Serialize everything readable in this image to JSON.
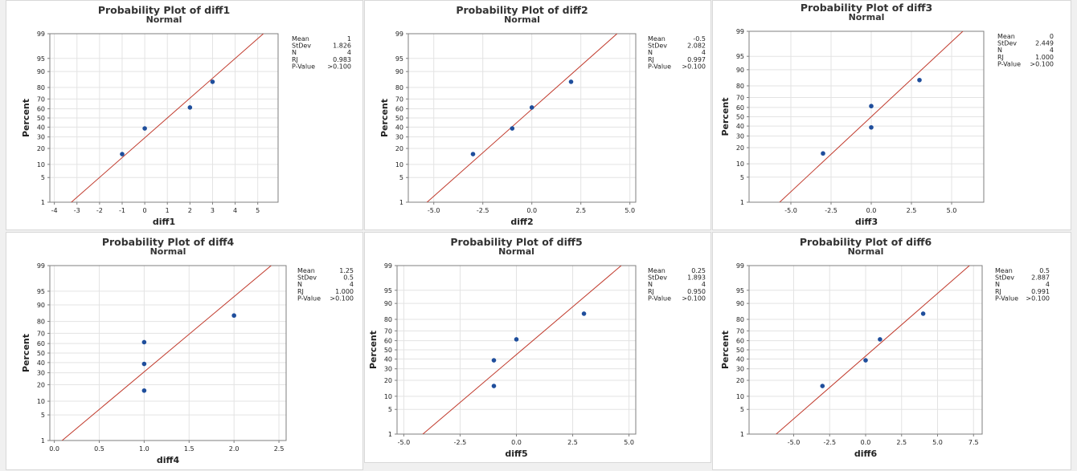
{
  "chart_data": [
    {
      "type": "scatter",
      "title": "Probability Plot of diff1",
      "subtitle": "Normal",
      "xlabel": "diff1",
      "ylabel": "Percent",
      "xlim": [
        -4.2,
        5.9
      ],
      "xticks": [
        -4,
        -3,
        -2,
        -1,
        0,
        1,
        2,
        3,
        4,
        5
      ],
      "xtick_labels": [
        "-4",
        "-3",
        "-2",
        "-1",
        "0",
        "1",
        "2",
        "3",
        "4",
        "5"
      ],
      "yticks": [
        1,
        5,
        10,
        20,
        30,
        40,
        50,
        60,
        70,
        80,
        90,
        95,
        99
      ],
      "ylim": [
        1,
        99
      ],
      "points": [
        {
          "x": -1,
          "y": 15.9
        },
        {
          "x": 0,
          "y": 38.6
        },
        {
          "x": 2,
          "y": 61.4
        },
        {
          "x": 3,
          "y": 84.1
        }
      ],
      "fit_line": {
        "mean": 1,
        "sd": 1.826
      },
      "stats": [
        {
          "label": "Mean",
          "value": "1"
        },
        {
          "label": "StDev",
          "value": "1.826"
        },
        {
          "label": "N",
          "value": "4"
        },
        {
          "label": "RJ",
          "value": "0.983"
        },
        {
          "label": "P-Value",
          "value": ">0.100"
        }
      ]
    },
    {
      "type": "scatter",
      "title": "Probability Plot of diff2",
      "subtitle": "Normal",
      "xlabel": "diff2",
      "ylabel": "Percent",
      "xlim": [
        -6.3,
        5.3
      ],
      "xticks": [
        -5,
        -2.5,
        0,
        2.5,
        5
      ],
      "xtick_labels": [
        "-5.0",
        "-2.5",
        "0.0",
        "2.5",
        "5.0"
      ],
      "yticks": [
        1,
        5,
        10,
        20,
        30,
        40,
        50,
        60,
        70,
        80,
        90,
        95,
        99
      ],
      "ylim": [
        1,
        99
      ],
      "points": [
        {
          "x": -3,
          "y": 15.9
        },
        {
          "x": -1,
          "y": 38.6
        },
        {
          "x": 0,
          "y": 61.4
        },
        {
          "x": 2,
          "y": 84.1
        }
      ],
      "fit_line": {
        "mean": -0.5,
        "sd": 2.082
      },
      "stats": [
        {
          "label": "Mean",
          "value": "-0.5"
        },
        {
          "label": "StDev",
          "value": "2.082"
        },
        {
          "label": "N",
          "value": "4"
        },
        {
          "label": "RJ",
          "value": "0.997"
        },
        {
          "label": "P-Value",
          "value": ">0.100"
        }
      ]
    },
    {
      "type": "scatter",
      "title": "Probability Plot of diff3",
      "subtitle": "Normal",
      "xlabel": "diff3",
      "ylabel": "Percent",
      "xlim": [
        -7.6,
        7
      ],
      "xticks": [
        -5,
        -2.5,
        0,
        2.5,
        5
      ],
      "xtick_labels": [
        "-5.0",
        "-2.5",
        "0.0",
        "2.5",
        "5.0"
      ],
      "yticks": [
        1,
        5,
        10,
        20,
        30,
        40,
        50,
        60,
        70,
        80,
        90,
        95,
        99
      ],
      "ylim": [
        1,
        99
      ],
      "points": [
        {
          "x": -3,
          "y": 15.9
        },
        {
          "x": 0,
          "y": 38.6
        },
        {
          "x": 0,
          "y": 61.4
        },
        {
          "x": 3,
          "y": 84.1
        }
      ],
      "fit_line": {
        "mean": 0,
        "sd": 2.449
      },
      "stats": [
        {
          "label": "Mean",
          "value": "0"
        },
        {
          "label": "StDev",
          "value": "2.449"
        },
        {
          "label": "N",
          "value": "4"
        },
        {
          "label": "RJ",
          "value": "1.000"
        },
        {
          "label": "P-Value",
          "value": ">0.100"
        }
      ]
    },
    {
      "type": "scatter",
      "title": "Probability Plot of diff4",
      "subtitle": "Normal",
      "xlabel": "diff4",
      "ylabel": "Percent",
      "xlim": [
        -0.05,
        2.58
      ],
      "xticks": [
        0,
        0.5,
        1,
        1.5,
        2,
        2.5
      ],
      "xtick_labels": [
        "0.0",
        "0.5",
        "1.0",
        "1.5",
        "2.0",
        "2.5"
      ],
      "yticks": [
        1,
        5,
        10,
        20,
        30,
        40,
        50,
        60,
        70,
        80,
        90,
        95,
        99
      ],
      "ylim": [
        1,
        99
      ],
      "points": [
        {
          "x": 1,
          "y": 15.9
        },
        {
          "x": 1,
          "y": 38.6
        },
        {
          "x": 1,
          "y": 61.4
        },
        {
          "x": 2,
          "y": 84.1
        }
      ],
      "fit_line": {
        "mean": 1.25,
        "sd": 0.5
      },
      "stats": [
        {
          "label": "Mean",
          "value": "1.25"
        },
        {
          "label": "StDev",
          "value": "0.5"
        },
        {
          "label": "N",
          "value": "4"
        },
        {
          "label": "RJ",
          "value": "1.000"
        },
        {
          "label": "P-Value",
          "value": ">0.100"
        }
      ]
    },
    {
      "type": "scatter",
      "title": "Probability Plot of diff5",
      "subtitle": "Normal",
      "xlabel": "diff5",
      "ylabel": "Percent",
      "xlim": [
        -5.3,
        5.3
      ],
      "xticks": [
        -5,
        -2.5,
        0,
        2.5,
        5
      ],
      "xtick_labels": [
        "-5.0",
        "-2.5",
        "0.0",
        "2.5",
        "5.0"
      ],
      "yticks": [
        1,
        5,
        10,
        20,
        30,
        40,
        50,
        60,
        70,
        80,
        90,
        95,
        99
      ],
      "ylim": [
        1,
        99
      ],
      "points": [
        {
          "x": -1,
          "y": 15.9
        },
        {
          "x": -1,
          "y": 38.6
        },
        {
          "x": 0,
          "y": 61.4
        },
        {
          "x": 3,
          "y": 84.1
        }
      ],
      "fit_line": {
        "mean": 0.25,
        "sd": 1.893
      },
      "stats": [
        {
          "label": "Mean",
          "value": "0.25"
        },
        {
          "label": "StDev",
          "value": "1.893"
        },
        {
          "label": "N",
          "value": "4"
        },
        {
          "label": "RJ",
          "value": "0.950"
        },
        {
          "label": "P-Value",
          "value": ">0.100"
        }
      ]
    },
    {
      "type": "scatter",
      "title": "Probability Plot of diff6",
      "subtitle": "Normal",
      "xlabel": "diff6",
      "ylabel": "Percent",
      "xlim": [
        -8.1,
        8.1
      ],
      "xticks": [
        -5,
        -2.5,
        0,
        2.5,
        5,
        7.5
      ],
      "xtick_labels": [
        "-5.0",
        "-2.5",
        "0.0",
        "2.5",
        "5.0",
        "7.5"
      ],
      "yticks": [
        1,
        5,
        10,
        20,
        30,
        40,
        50,
        60,
        70,
        80,
        90,
        95,
        99
      ],
      "ylim": [
        1,
        99
      ],
      "points": [
        {
          "x": -3,
          "y": 15.9
        },
        {
          "x": 0,
          "y": 38.6
        },
        {
          "x": 1,
          "y": 61.4
        },
        {
          "x": 4,
          "y": 84.1
        }
      ],
      "fit_line": {
        "mean": 0.5,
        "sd": 2.887
      },
      "stats": [
        {
          "label": "Mean",
          "value": "0.5"
        },
        {
          "label": "StDev",
          "value": "2.887"
        },
        {
          "label": "N",
          "value": "4"
        },
        {
          "label": "RJ",
          "value": "0.991"
        },
        {
          "label": "P-Value",
          "value": ">0.100"
        }
      ]
    }
  ],
  "colors": {
    "fit_line": "#c0392b",
    "point": "#1f4e9c",
    "grid": "#e3e3e3",
    "axis": "#7f7f7f"
  }
}
